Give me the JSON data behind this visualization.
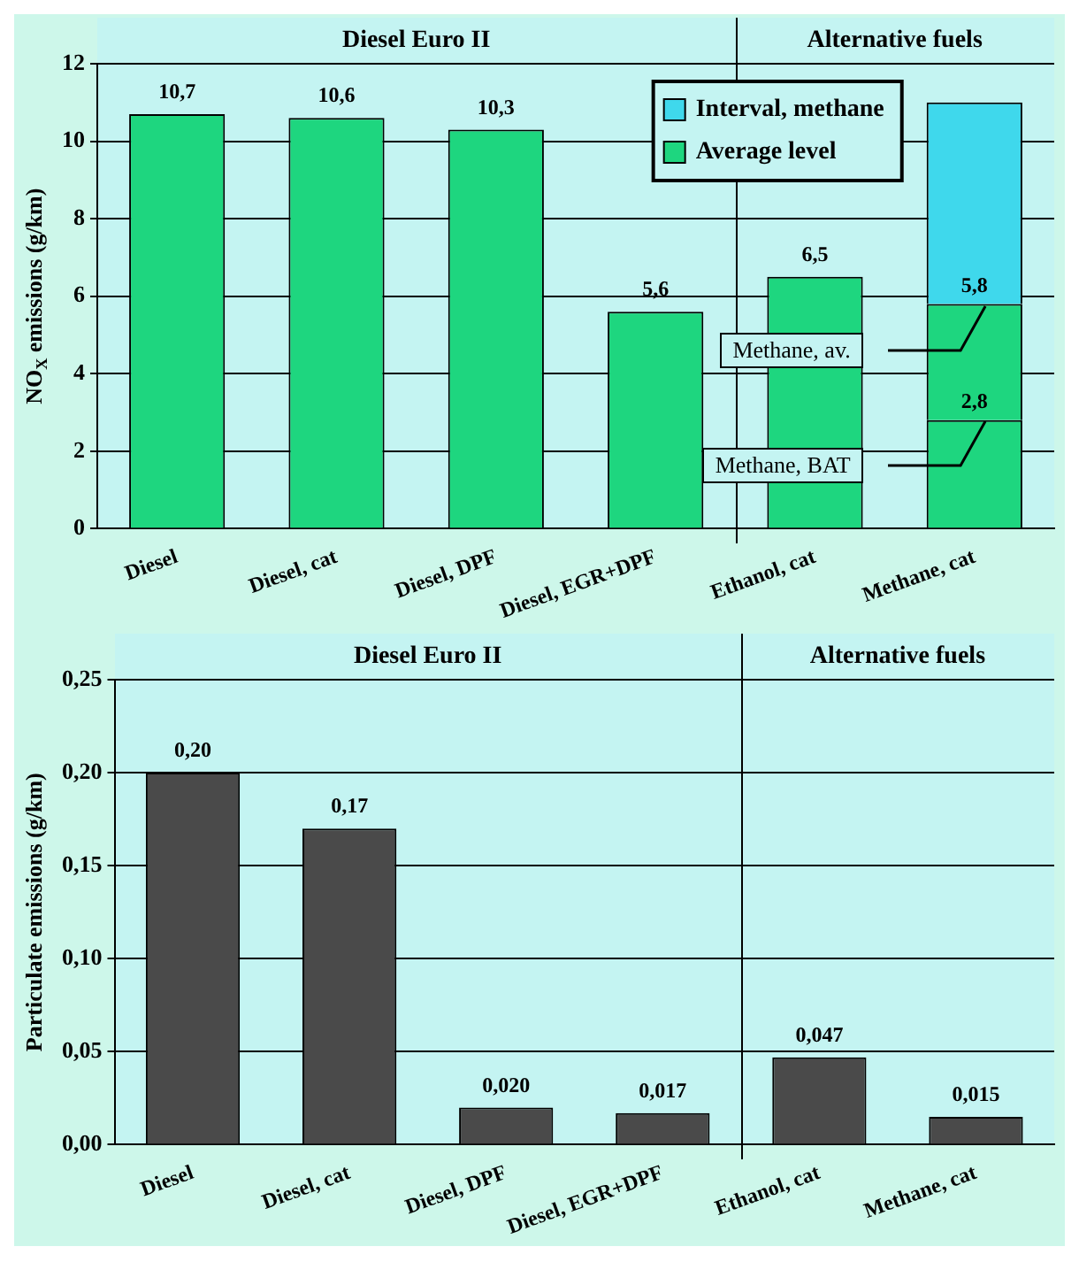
{
  "chart_data": [
    {
      "type": "bar",
      "ylabel": "NO$_{X}$ emissions (g/km)",
      "categories": [
        "Diesel",
        "Diesel, cat",
        "Diesel, DPF",
        "Diesel, EGR+DPF",
        "Ethanol, cat",
        "Methane, cat"
      ],
      "stacked": true,
      "series": [
        {
          "name": "Average level",
          "color": "#1ed67f",
          "values": [
            10.7,
            10.6,
            10.3,
            5.6,
            6.5,
            2.8
          ],
          "value_labels": [
            "10,7",
            "10,6",
            "10,3",
            "5,6",
            "6,5",
            null
          ]
        },
        {
          "color": "#1ed67f",
          "values": [
            null,
            null,
            null,
            null,
            null,
            3.0
          ]
        },
        {
          "name": "Interval, methane",
          "color": "#3fd8ec",
          "values": [
            null,
            null,
            null,
            null,
            null,
            5.2
          ]
        }
      ],
      "ylim": [
        0,
        12
      ],
      "yticks": [
        0,
        2,
        4,
        6,
        8,
        10,
        12
      ],
      "grid": "y",
      "legend": "top right",
      "annotations": [
        "Diesel Euro II",
        "Alternative fuels",
        "Methane, av.",
        "Methane, BAT",
        {
          "text": "5,8",
          "x": "Methane, cat",
          "y": 5.8
        },
        {
          "text": "2,8",
          "x": "Methane, cat",
          "y": 2.8
        }
      ]
    },
    {
      "type": "bar",
      "ylabel": "Particulate emissions (g/km)",
      "categories": [
        "Diesel",
        "Diesel, cat",
        "Diesel, DPF",
        "Diesel, EGR+DPF",
        "Ethanol, cat",
        "Methane, cat"
      ],
      "values": [
        0.2,
        0.17,
        0.02,
        0.017,
        0.047,
        0.015
      ],
      "color": "#4a4a4a",
      "value_labels": [
        "0,20",
        "0,17",
        "0,020",
        "0,017",
        "0,047",
        "0,015"
      ],
      "ylim": [
        0,
        0.25
      ],
      "yticks": [
        {
          "value": 0,
          "label": "0,00"
        },
        {
          "value": 0.05,
          "label": "0,05"
        },
        {
          "value": 0.1,
          "label": "0,10"
        },
        {
          "value": 0.15,
          "label": "0,15"
        },
        {
          "value": 0.2,
          "label": "0,20"
        },
        {
          "value": 0.25,
          "label": "0,25"
        }
      ],
      "grid": "y",
      "annotations": [
        "Diesel Euro II",
        "Alternative fuels"
      ]
    }
  ]
}
